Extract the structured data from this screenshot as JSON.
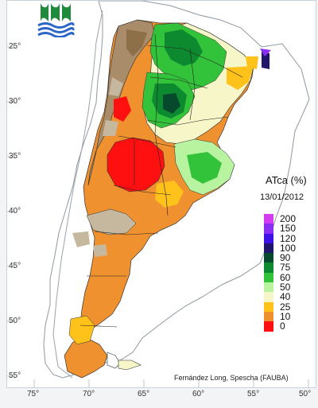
{
  "title": "ATca (%)",
  "date": "13/01/2012",
  "credit": "Fernández Long, Spescha (FAUBA)",
  "latitude_labels": [
    "25°",
    "30°",
    "35°",
    "40°",
    "45°",
    "50°",
    "55°"
  ],
  "longitude_labels": [
    "75°",
    "70°",
    "65°",
    "60°",
    "55°",
    "50°"
  ],
  "legend": [
    {
      "label": "200",
      "color": "#d43cf0"
    },
    {
      "label": "150",
      "color": "#8a2ef3"
    },
    {
      "label": "120",
      "color": "#3d10e8"
    },
    {
      "label": "100",
      "color": "#21146b"
    },
    {
      "label": "90",
      "color": "#06492c"
    },
    {
      "label": "75",
      "color": "#0d8a2f"
    },
    {
      "label": "60",
      "color": "#33c33a"
    },
    {
      "label": "50",
      "color": "#b8f3a0"
    },
    {
      "label": "40",
      "color": "#f7f6c9"
    },
    {
      "label": "25",
      "color": "#ffc21b"
    },
    {
      "label": "10",
      "color": "#f0912f"
    },
    {
      "label": "0",
      "color": "#ff1010"
    }
  ],
  "colors": {
    "frame": "#ffffff",
    "border": "#c9d2db",
    "map_bg": "#ffffff",
    "ocean_lines": "#9aa3ac",
    "logo_green": "#1f8a3c",
    "logo_blue": "#2c66c9"
  }
}
